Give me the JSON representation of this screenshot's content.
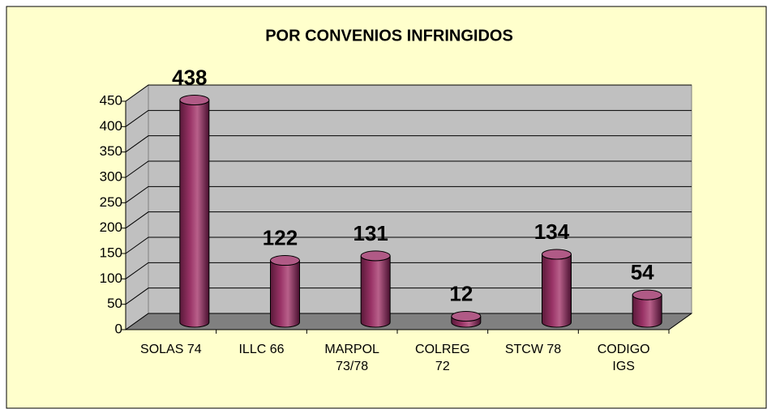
{
  "chart_data": {
    "type": "bar",
    "title": "POR CONVENIOS INFRINGIDOS",
    "categories": [
      "SOLAS 74",
      "ILLC 66",
      "MARPOL 73/78",
      "COLREG 72",
      "STCW 78",
      "CODIGO IGS"
    ],
    "values": [
      438,
      122,
      131,
      12,
      134,
      54
    ],
    "color": "#993366",
    "ylim": [
      0,
      450
    ],
    "yticks": [
      0,
      50,
      100,
      150,
      200,
      250,
      300,
      350,
      400,
      450
    ],
    "grid": true
  }
}
